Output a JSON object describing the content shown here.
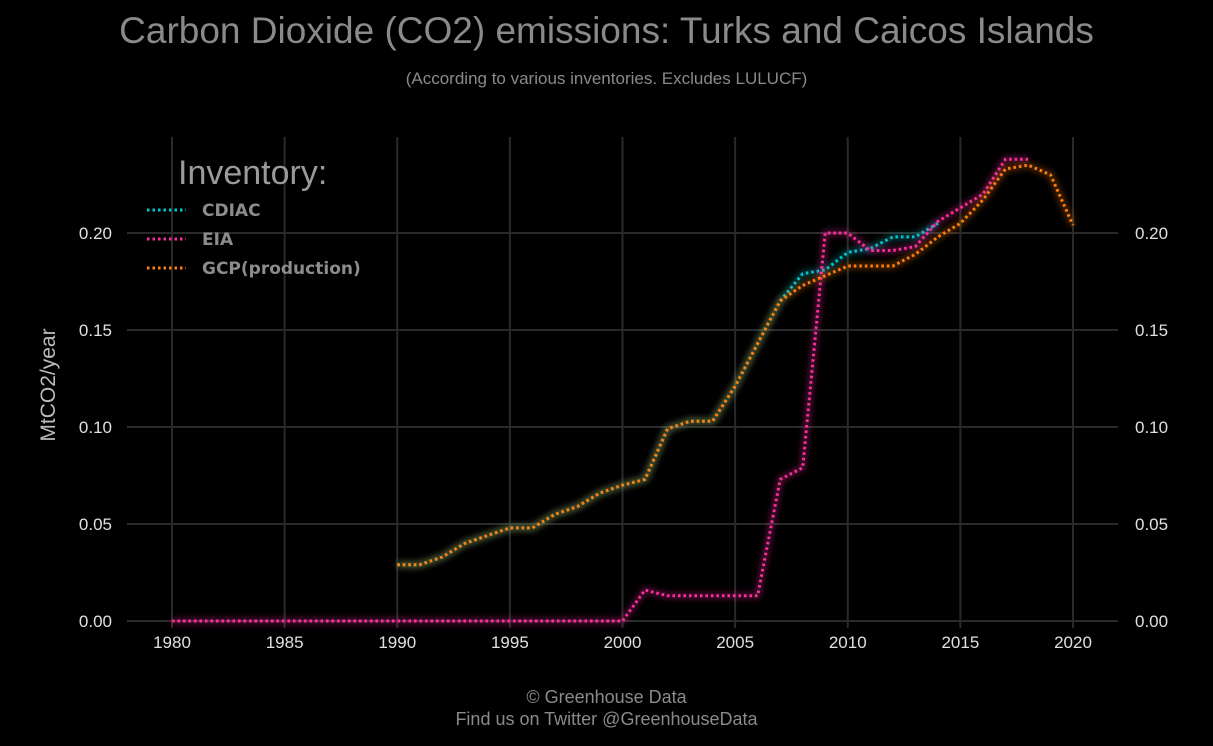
{
  "title": "Carbon Dioxide (CO2) emissions: Turks and Caicos Islands",
  "subtitle": "(According to various inventories. Excludes LULUCF)",
  "footer": {
    "line1": "© Greenhouse Data",
    "line2": "Find us on Twitter @GreenhouseData"
  },
  "colors": {
    "background": "#000000",
    "grid": "#2a2a2a",
    "text": "#8a8a8a",
    "tick": "#e0e0e0"
  },
  "chart_data": {
    "type": "line",
    "title": "Carbon Dioxide (CO2) emissions: Turks and Caicos Islands",
    "subtitle": "(According to various inventories. Excludes LULUCF)",
    "xlabel": "",
    "ylabel": "MtCO2/year",
    "xlim": [
      1978,
      2022
    ],
    "ylim": [
      0,
      0.25
    ],
    "xticks": [
      "1980",
      "1985",
      "1990",
      "1995",
      "2000",
      "2005",
      "2010",
      "2015",
      "2020"
    ],
    "yticks": [
      "0.00",
      "0.05",
      "0.10",
      "0.15",
      "0.20"
    ],
    "grid": true,
    "legend": {
      "title": "Inventory:",
      "position": "top-left"
    },
    "series": [
      {
        "name": "CDIAC",
        "color": "#00c8d2",
        "x": [
          1990,
          1991,
          1992,
          1993,
          1994,
          1995,
          1996,
          1997,
          1998,
          1999,
          2000,
          2001,
          2002,
          2003,
          2004,
          2005,
          2006,
          2007,
          2008,
          2009,
          2010,
          2011,
          2012,
          2013,
          2014
        ],
        "y": [
          0.029,
          0.029,
          0.033,
          0.04,
          0.044,
          0.048,
          0.048,
          0.055,
          0.059,
          0.066,
          0.07,
          0.073,
          0.099,
          0.103,
          0.103,
          0.121,
          0.143,
          0.165,
          0.179,
          0.181,
          0.19,
          0.192,
          0.198,
          0.198,
          0.205
        ]
      },
      {
        "name": "EIA",
        "color": "#ff2ca0",
        "x": [
          1980,
          1981,
          1982,
          1983,
          1984,
          1985,
          1986,
          1987,
          1988,
          1989,
          1990,
          1991,
          1992,
          1993,
          1994,
          1995,
          1996,
          1997,
          1998,
          1999,
          2000,
          2001,
          2002,
          2003,
          2004,
          2005,
          2006,
          2007,
          2008,
          2009,
          2010,
          2011,
          2012,
          2013,
          2014,
          2015,
          2016,
          2017,
          2018
        ],
        "y": [
          0,
          0,
          0,
          0,
          0,
          0,
          0,
          0,
          0,
          0,
          0,
          0,
          0,
          0,
          0,
          0,
          0,
          0,
          0,
          0,
          0,
          0.016,
          0.013,
          0.013,
          0.013,
          0.013,
          0.013,
          0.073,
          0.079,
          0.2,
          0.2,
          0.191,
          0.191,
          0.193,
          0.206,
          0.213,
          0.22,
          0.238,
          0.238
        ]
      },
      {
        "name": "GCP(production)",
        "color": "#ff7f0e",
        "x": [
          1990,
          1991,
          1992,
          1993,
          1994,
          1995,
          1996,
          1997,
          1998,
          1999,
          2000,
          2001,
          2002,
          2003,
          2004,
          2005,
          2006,
          2007,
          2008,
          2009,
          2010,
          2011,
          2012,
          2013,
          2014,
          2015,
          2016,
          2017,
          2018,
          2019,
          2020
        ],
        "y": [
          0.029,
          0.029,
          0.033,
          0.04,
          0.044,
          0.048,
          0.048,
          0.055,
          0.059,
          0.066,
          0.07,
          0.073,
          0.099,
          0.103,
          0.103,
          0.121,
          0.143,
          0.165,
          0.173,
          0.178,
          0.183,
          0.183,
          0.183,
          0.189,
          0.198,
          0.205,
          0.217,
          0.233,
          0.235,
          0.23,
          0.204
        ]
      }
    ]
  }
}
